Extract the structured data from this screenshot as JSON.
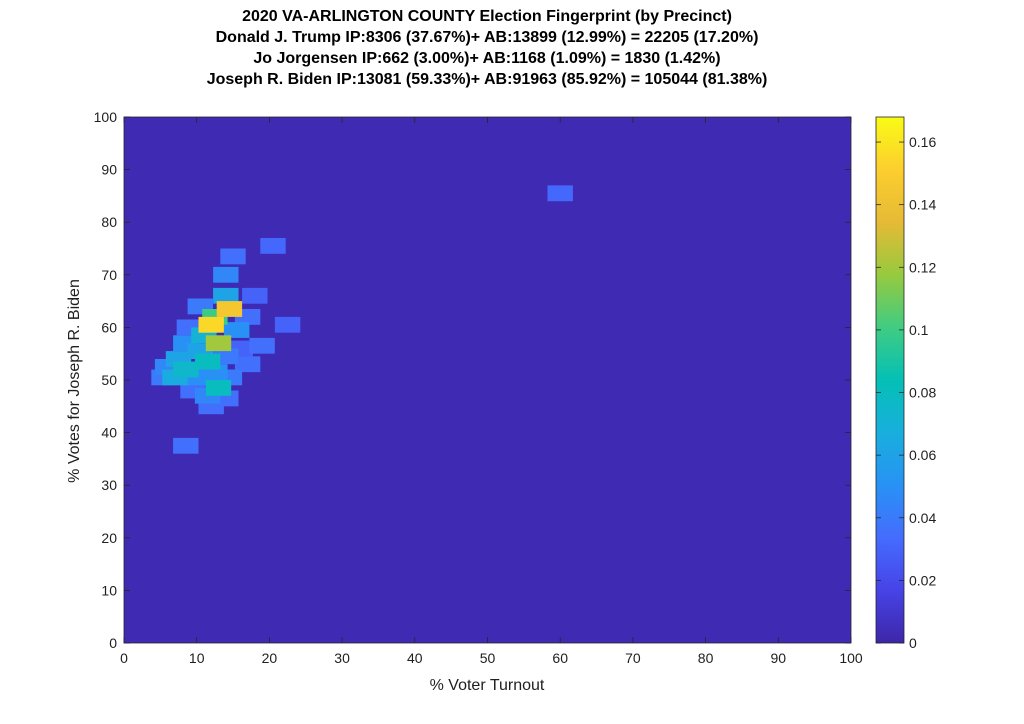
{
  "chart_data": {
    "type": "heatmap",
    "title_lines": [
      "2020 VA-ARLINGTON COUNTY Election Fingerprint (by Precinct)",
      "Donald J. Trump IP:8306 (37.67%)+ AB:13899 (12.99%) = 22205 (17.20%)",
      "Jo Jorgensen IP:662 (3.00%)+ AB:1168 (1.09%) = 1830 (1.42%)",
      "Joseph R. Biden IP:13081 (59.33%)+ AB:91963 (85.92%) = 105044 (81.38%)"
    ],
    "xlabel": "% Voter Turnout",
    "ylabel": "% Votes for Joseph R. Biden",
    "xlim": [
      0,
      100
    ],
    "ylim": [
      0,
      100
    ],
    "xticks": [
      0,
      10,
      20,
      30,
      40,
      50,
      60,
      70,
      80,
      90,
      100
    ],
    "yticks": [
      0,
      10,
      20,
      30,
      40,
      50,
      60,
      70,
      80,
      90,
      100
    ],
    "colorbar": {
      "range": [
        0,
        0.168
      ],
      "ticks": [
        0,
        0.02,
        0.04,
        0.06,
        0.08,
        0.1,
        0.12,
        0.14,
        0.16
      ],
      "tick_labels": [
        "0",
        "0.02",
        "0.04",
        "0.06",
        "0.08",
        "0.1",
        "0.12",
        "0.14",
        "0.16"
      ],
      "colormap": "parula"
    },
    "background_value": 0.003,
    "cell_size": [
      3.5,
      3.0
    ],
    "cells": [
      {
        "x": 60,
        "y": 85.5,
        "v": 0.032
      },
      {
        "x": 20.5,
        "y": 75.5,
        "v": 0.032
      },
      {
        "x": 15,
        "y": 73.5,
        "v": 0.035
      },
      {
        "x": 14,
        "y": 70,
        "v": 0.045
      },
      {
        "x": 18,
        "y": 66,
        "v": 0.03
      },
      {
        "x": 14,
        "y": 66,
        "v": 0.06
      },
      {
        "x": 10.5,
        "y": 64,
        "v": 0.04
      },
      {
        "x": 14.5,
        "y": 63.5,
        "v": 0.145
      },
      {
        "x": 12.5,
        "y": 62,
        "v": 0.1
      },
      {
        "x": 17,
        "y": 62,
        "v": 0.035
      },
      {
        "x": 22.5,
        "y": 60.5,
        "v": 0.03
      },
      {
        "x": 12,
        "y": 60.5,
        "v": 0.155
      },
      {
        "x": 9,
        "y": 60,
        "v": 0.035
      },
      {
        "x": 15.5,
        "y": 59.5,
        "v": 0.05
      },
      {
        "x": 11,
        "y": 58.5,
        "v": 0.07
      },
      {
        "x": 13,
        "y": 57,
        "v": 0.12
      },
      {
        "x": 8.5,
        "y": 57,
        "v": 0.05
      },
      {
        "x": 19,
        "y": 56.5,
        "v": 0.035
      },
      {
        "x": 16,
        "y": 56,
        "v": 0.03
      },
      {
        "x": 10.5,
        "y": 55.5,
        "v": 0.06
      },
      {
        "x": 14,
        "y": 54.5,
        "v": 0.04
      },
      {
        "x": 7.5,
        "y": 54,
        "v": 0.06
      },
      {
        "x": 11.5,
        "y": 53.5,
        "v": 0.08
      },
      {
        "x": 17,
        "y": 53,
        "v": 0.035
      },
      {
        "x": 6,
        "y": 52.5,
        "v": 0.045
      },
      {
        "x": 8.5,
        "y": 52,
        "v": 0.075
      },
      {
        "x": 7,
        "y": 50.5,
        "v": 0.065
      },
      {
        "x": 10,
        "y": 50.5,
        "v": 0.05
      },
      {
        "x": 12.5,
        "y": 51.5,
        "v": 0.05
      },
      {
        "x": 5.5,
        "y": 50.5,
        "v": 0.04
      },
      {
        "x": 14.5,
        "y": 50.5,
        "v": 0.04
      },
      {
        "x": 9.5,
        "y": 48,
        "v": 0.035
      },
      {
        "x": 13,
        "y": 48.5,
        "v": 0.08
      },
      {
        "x": 11.5,
        "y": 47,
        "v": 0.045
      },
      {
        "x": 14,
        "y": 46.5,
        "v": 0.035
      },
      {
        "x": 12,
        "y": 45,
        "v": 0.035
      },
      {
        "x": 8.5,
        "y": 37.5,
        "v": 0.035
      }
    ]
  }
}
